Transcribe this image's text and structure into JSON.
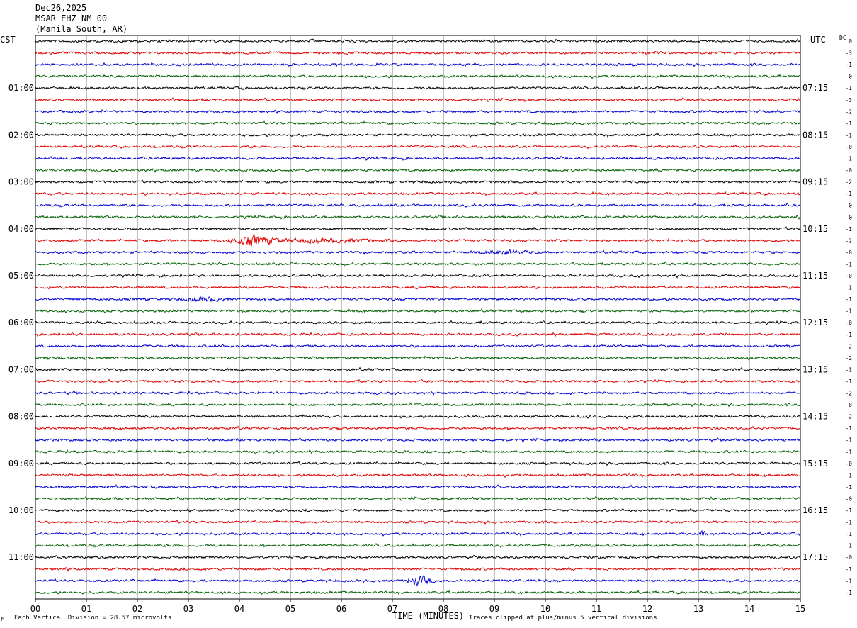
{
  "header": {
    "date": "Dec26,2025",
    "station": "MSAR EHZ NM 00",
    "location": "(Manila South, AR)"
  },
  "left_tz": "CST",
  "right_tz": "UTC",
  "dc_label": "DC",
  "footer": {
    "scale_note": "Each Vertical Division =   28.57 microvolts",
    "x_title": "TIME (MINUTES)",
    "clip_note": "Traces clipped at plus/minus 5 vertical divisions",
    "corner_mark": "M"
  },
  "colors": {
    "trace_cycle": [
      "#000000",
      "#e00000",
      "#0000d0",
      "#006000"
    ],
    "grid": "#808080"
  },
  "chart_data": {
    "type": "line",
    "title": "",
    "xlabel": "TIME (MINUTES)",
    "ylabel": "",
    "xlim": [
      0,
      15
    ],
    "x_ticks": [
      "00",
      "01",
      "02",
      "03",
      "04",
      "05",
      "06",
      "07",
      "08",
      "09",
      "10",
      "11",
      "12",
      "13",
      "14",
      "15"
    ],
    "trace_count": 48,
    "left_hour_labels": [
      "01:00",
      "02:00",
      "03:00",
      "04:00",
      "05:00",
      "06:00",
      "07:00",
      "08:00",
      "09:00",
      "10:00",
      "11:00"
    ],
    "right_hour_labels": [
      "07:15",
      "08:15",
      "09:15",
      "10:15",
      "11:15",
      "12:15",
      "13:15",
      "14:15",
      "15:15",
      "16:15",
      "17:15"
    ],
    "dc_offsets": [
      "0",
      "-3",
      "-1",
      "0",
      "-1",
      "-3",
      "-2",
      "-1",
      "-1",
      "-0",
      "-1",
      "-0",
      "-2",
      "-1",
      "-0",
      "0",
      "-1",
      "-2",
      "-0",
      "-1",
      "-0",
      "-1",
      "-1",
      "-1",
      "-0",
      "-1",
      "-2",
      "-2",
      "-1",
      "-1",
      "-2",
      "0",
      "-2",
      "-1",
      "-1",
      "-1",
      "-0",
      "-1",
      "-1",
      "-0",
      "-1",
      "-1",
      "-1",
      "-1",
      "-0",
      "-1",
      "-1",
      "-1"
    ],
    "events": [
      {
        "trace": 17,
        "start_min": 3.5,
        "end_min": 4.8,
        "amplitude": "large",
        "peak_min": 4.3
      },
      {
        "trace": 17,
        "start_min": 4.8,
        "end_min": 9.5,
        "amplitude": "moderate",
        "peak_min": 5.5
      },
      {
        "trace": 18,
        "start_min": 8.7,
        "end_min": 11.0,
        "amplitude": "moderate",
        "peak_min": 9.2
      },
      {
        "trace": 22,
        "start_min": 2.0,
        "end_min": 3.8,
        "amplitude": "moderate",
        "peak_min": 3.3
      },
      {
        "trace": 42,
        "start_min": 13.0,
        "end_min": 13.3,
        "amplitude": "small",
        "peak_min": 13.1
      },
      {
        "trace": 46,
        "start_min": 7.3,
        "end_min": 8.0,
        "amplitude": "large",
        "peak_min": 7.5
      }
    ]
  }
}
